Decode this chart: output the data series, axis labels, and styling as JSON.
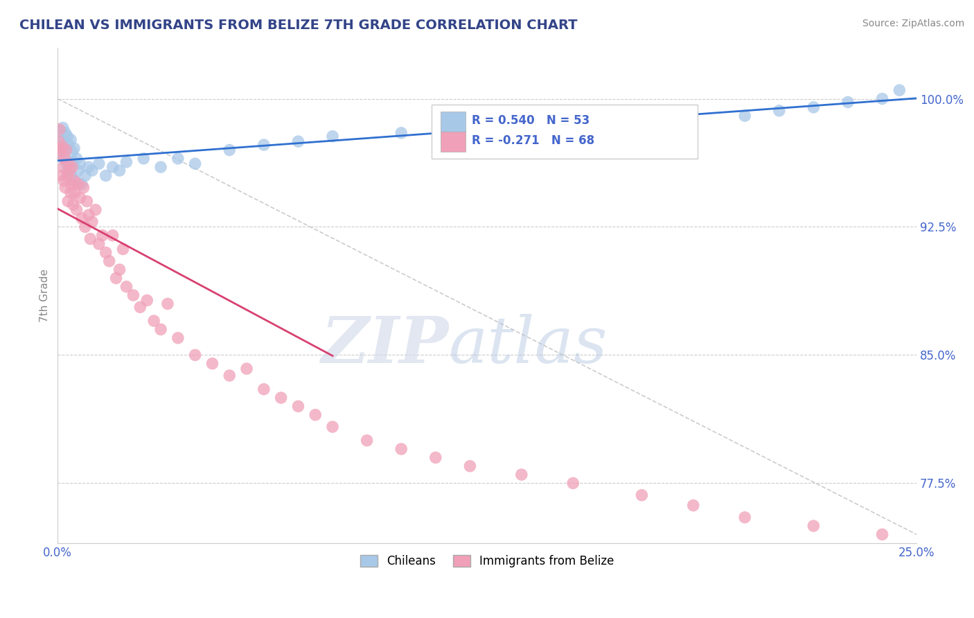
{
  "title": "CHILEAN VS IMMIGRANTS FROM BELIZE 7TH GRADE CORRELATION CHART",
  "source_text": "Source: ZipAtlas.com",
  "ylabel": "7th Grade",
  "xlim": [
    0.0,
    25.0
  ],
  "ylim": [
    74.0,
    103.0
  ],
  "xticks": [
    0.0,
    25.0
  ],
  "xticklabels": [
    "0.0%",
    "25.0%"
  ],
  "yticks": [
    77.5,
    85.0,
    92.5,
    100.0
  ],
  "yticklabels": [
    "77.5%",
    "85.0%",
    "92.5%",
    "100.0%"
  ],
  "chilean_color": "#a8c8e8",
  "belize_color": "#f0a0b8",
  "chilean_line_color": "#3070d0",
  "belize_line_color": "#d84070",
  "R_chilean": 0.54,
  "N_chilean": 53,
  "R_belize": -0.271,
  "N_belize": 68,
  "watermark_zip": "ZIP",
  "watermark_atlas": "atlas",
  "legend_chilean": "Chileans",
  "legend_belize": "Immigrants from Belize",
  "chilean_x": [
    0.05,
    0.08,
    0.1,
    0.12,
    0.15,
    0.18,
    0.2,
    0.22,
    0.25,
    0.28,
    0.3,
    0.32,
    0.35,
    0.38,
    0.4,
    0.42,
    0.45,
    0.48,
    0.5,
    0.55,
    0.6,
    0.65,
    0.7,
    0.8,
    0.9,
    1.0,
    1.2,
    1.4,
    1.6,
    1.8,
    2.0,
    2.5,
    3.0,
    3.5,
    4.0,
    5.0,
    6.0,
    7.0,
    8.0,
    10.0,
    12.0,
    13.0,
    14.0,
    15.0,
    16.0,
    17.0,
    18.0,
    20.0,
    21.0,
    22.0,
    23.0,
    24.0,
    24.5
  ],
  "chilean_y": [
    97.2,
    98.1,
    96.8,
    97.5,
    98.3,
    96.5,
    97.0,
    98.0,
    96.2,
    97.8,
    95.8,
    97.3,
    96.0,
    97.6,
    95.5,
    96.9,
    96.3,
    97.1,
    95.2,
    96.5,
    95.8,
    96.2,
    95.0,
    95.5,
    96.0,
    95.8,
    96.2,
    95.5,
    96.0,
    95.8,
    96.3,
    96.5,
    96.0,
    96.5,
    96.2,
    97.0,
    97.3,
    97.5,
    97.8,
    98.0,
    98.2,
    98.5,
    98.0,
    98.5,
    99.0,
    98.8,
    99.2,
    99.0,
    99.3,
    99.5,
    99.8,
    100.0,
    100.5
  ],
  "belize_x": [
    0.03,
    0.05,
    0.07,
    0.1,
    0.12,
    0.14,
    0.16,
    0.18,
    0.2,
    0.22,
    0.25,
    0.28,
    0.3,
    0.32,
    0.35,
    0.38,
    0.4,
    0.42,
    0.45,
    0.48,
    0.5,
    0.55,
    0.6,
    0.65,
    0.7,
    0.75,
    0.8,
    0.85,
    0.9,
    0.95,
    1.0,
    1.1,
    1.2,
    1.3,
    1.4,
    1.5,
    1.6,
    1.7,
    1.8,
    1.9,
    2.0,
    2.2,
    2.4,
    2.6,
    2.8,
    3.0,
    3.2,
    3.5,
    4.0,
    4.5,
    5.0,
    5.5,
    6.0,
    6.5,
    7.0,
    7.5,
    8.0,
    9.0,
    10.0,
    11.0,
    12.0,
    13.5,
    15.0,
    17.0,
    18.5,
    20.0,
    22.0,
    24.0
  ],
  "belize_y": [
    97.5,
    98.2,
    96.8,
    97.0,
    95.5,
    97.2,
    96.0,
    95.2,
    96.5,
    94.8,
    97.0,
    95.5,
    94.0,
    96.2,
    95.8,
    94.5,
    95.0,
    96.0,
    93.8,
    95.2,
    94.5,
    93.5,
    95.0,
    94.2,
    93.0,
    94.8,
    92.5,
    94.0,
    93.2,
    91.8,
    92.8,
    93.5,
    91.5,
    92.0,
    91.0,
    90.5,
    92.0,
    89.5,
    90.0,
    91.2,
    89.0,
    88.5,
    87.8,
    88.2,
    87.0,
    86.5,
    88.0,
    86.0,
    85.0,
    84.5,
    83.8,
    84.2,
    83.0,
    82.5,
    82.0,
    81.5,
    80.8,
    80.0,
    79.5,
    79.0,
    78.5,
    78.0,
    77.5,
    76.8,
    76.2,
    75.5,
    75.0,
    74.5
  ],
  "belize_line_x_end": 8.0,
  "diag_line": [
    [
      0.0,
      100.0
    ],
    [
      25.0,
      74.5
    ]
  ]
}
